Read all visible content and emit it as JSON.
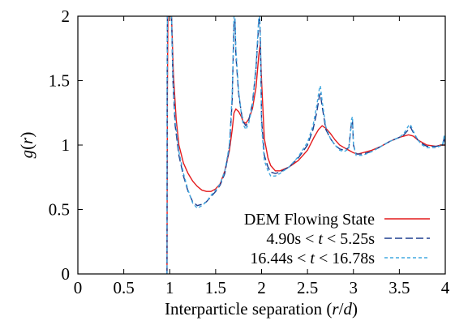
{
  "chart_data": {
    "type": "line",
    "xlabel": "Interparticle separation (r/d)",
    "ylabel": "g(r)",
    "xlim": [
      0,
      4
    ],
    "ylim": [
      0,
      2
    ],
    "xticks": [
      "0",
      "0.5",
      "1",
      "1.5",
      "2",
      "2.5",
      "3",
      "3.5",
      "4"
    ],
    "yticks": [
      "0",
      "0.5",
      "1",
      "1.5",
      "2"
    ],
    "grid": false,
    "legend_position": "bottom-right",
    "series": [
      {
        "name": "DEM Flowing State",
        "color": "#e41a1c",
        "dash": "solid",
        "points": [
          [
            0.97,
            0
          ],
          [
            0.975,
            1.4
          ],
          [
            0.98,
            2.0
          ],
          [
            1.0,
            2.0
          ],
          [
            1.02,
            2.0
          ],
          [
            1.04,
            1.55
          ],
          [
            1.07,
            1.2
          ],
          [
            1.1,
            1.0
          ],
          [
            1.15,
            0.86
          ],
          [
            1.2,
            0.78
          ],
          [
            1.25,
            0.72
          ],
          [
            1.3,
            0.68
          ],
          [
            1.35,
            0.65
          ],
          [
            1.4,
            0.64
          ],
          [
            1.45,
            0.64
          ],
          [
            1.5,
            0.66
          ],
          [
            1.55,
            0.7
          ],
          [
            1.6,
            0.8
          ],
          [
            1.65,
            0.96
          ],
          [
            1.68,
            1.12
          ],
          [
            1.7,
            1.25
          ],
          [
            1.72,
            1.28
          ],
          [
            1.75,
            1.26
          ],
          [
            1.78,
            1.22
          ],
          [
            1.8,
            1.18
          ],
          [
            1.83,
            1.17
          ],
          [
            1.86,
            1.2
          ],
          [
            1.9,
            1.28
          ],
          [
            1.94,
            1.45
          ],
          [
            1.97,
            1.7
          ],
          [
            1.985,
            1.78
          ],
          [
            2.0,
            1.5
          ],
          [
            2.03,
            1.05
          ],
          [
            2.07,
            0.9
          ],
          [
            2.1,
            0.84
          ],
          [
            2.15,
            0.8
          ],
          [
            2.2,
            0.8
          ],
          [
            2.3,
            0.83
          ],
          [
            2.4,
            0.88
          ],
          [
            2.5,
            0.96
          ],
          [
            2.57,
            1.06
          ],
          [
            2.62,
            1.12
          ],
          [
            2.66,
            1.15
          ],
          [
            2.7,
            1.13
          ],
          [
            2.75,
            1.09
          ],
          [
            2.8,
            1.04
          ],
          [
            2.85,
            1.0
          ],
          [
            2.9,
            0.98
          ],
          [
            2.95,
            0.96
          ],
          [
            3.0,
            0.94
          ],
          [
            3.05,
            0.93
          ],
          [
            3.1,
            0.94
          ],
          [
            3.2,
            0.96
          ],
          [
            3.3,
            0.99
          ],
          [
            3.4,
            1.03
          ],
          [
            3.5,
            1.06
          ],
          [
            3.55,
            1.07
          ],
          [
            3.6,
            1.08
          ],
          [
            3.65,
            1.07
          ],
          [
            3.7,
            1.04
          ],
          [
            3.75,
            1.02
          ],
          [
            3.8,
            1.0
          ],
          [
            3.9,
            0.99
          ],
          [
            3.95,
            1.0
          ],
          [
            4.0,
            1.0
          ]
        ]
      },
      {
        "name": "4.90s < t < 5.25s",
        "color": "#1f3f8f",
        "dash": "long",
        "points": [
          [
            0.97,
            0
          ],
          [
            0.972,
            1.5
          ],
          [
            0.975,
            2.0
          ],
          [
            1.0,
            2.0
          ],
          [
            1.02,
            2.0
          ],
          [
            1.035,
            1.5
          ],
          [
            1.06,
            1.15
          ],
          [
            1.1,
            0.92
          ],
          [
            1.15,
            0.76
          ],
          [
            1.2,
            0.64
          ],
          [
            1.25,
            0.56
          ],
          [
            1.3,
            0.53
          ],
          [
            1.35,
            0.54
          ],
          [
            1.4,
            0.56
          ],
          [
            1.45,
            0.6
          ],
          [
            1.5,
            0.64
          ],
          [
            1.55,
            0.69
          ],
          [
            1.6,
            0.78
          ],
          [
            1.65,
            0.98
          ],
          [
            1.68,
            1.35
          ],
          [
            1.7,
            1.95
          ],
          [
            1.71,
            1.98
          ],
          [
            1.72,
            1.7
          ],
          [
            1.75,
            1.4
          ],
          [
            1.78,
            1.25
          ],
          [
            1.8,
            1.18
          ],
          [
            1.83,
            1.15
          ],
          [
            1.86,
            1.19
          ],
          [
            1.9,
            1.32
          ],
          [
            1.94,
            1.6
          ],
          [
            1.97,
            1.95
          ],
          [
            1.98,
            2.0
          ],
          [
            1.99,
            1.7
          ],
          [
            2.0,
            1.2
          ],
          [
            2.03,
            0.92
          ],
          [
            2.07,
            0.83
          ],
          [
            2.1,
            0.79
          ],
          [
            2.15,
            0.78
          ],
          [
            2.2,
            0.79
          ],
          [
            2.3,
            0.83
          ],
          [
            2.4,
            0.9
          ],
          [
            2.5,
            1.0
          ],
          [
            2.56,
            1.12
          ],
          [
            2.6,
            1.25
          ],
          [
            2.63,
            1.38
          ],
          [
            2.64,
            1.4
          ],
          [
            2.66,
            1.3
          ],
          [
            2.7,
            1.12
          ],
          [
            2.75,
            1.05
          ],
          [
            2.8,
            1.0
          ],
          [
            2.85,
            0.97
          ],
          [
            2.9,
            0.96
          ],
          [
            2.95,
            0.98
          ],
          [
            2.98,
            1.18
          ],
          [
            2.99,
            1.19
          ],
          [
            3.0,
            1.0
          ],
          [
            3.03,
            0.93
          ],
          [
            3.1,
            0.93
          ],
          [
            3.2,
            0.95
          ],
          [
            3.3,
            0.99
          ],
          [
            3.4,
            1.03
          ],
          [
            3.5,
            1.06
          ],
          [
            3.55,
            1.08
          ],
          [
            3.6,
            1.12
          ],
          [
            3.62,
            1.14
          ],
          [
            3.65,
            1.1
          ],
          [
            3.7,
            1.04
          ],
          [
            3.75,
            1.01
          ],
          [
            3.8,
            0.99
          ],
          [
            3.9,
            0.99
          ],
          [
            3.97,
            1.0
          ],
          [
            3.99,
            1.06
          ],
          [
            4.0,
            1.0
          ]
        ]
      },
      {
        "name": "16.44s < t < 16.78s",
        "color": "#41a8e0",
        "dash": "short",
        "points": [
          [
            0.97,
            0
          ],
          [
            0.972,
            1.5
          ],
          [
            0.975,
            2.0
          ],
          [
            1.0,
            2.0
          ],
          [
            1.02,
            2.0
          ],
          [
            1.035,
            1.55
          ],
          [
            1.06,
            1.2
          ],
          [
            1.1,
            0.95
          ],
          [
            1.15,
            0.78
          ],
          [
            1.2,
            0.65
          ],
          [
            1.25,
            0.55
          ],
          [
            1.3,
            0.51
          ],
          [
            1.35,
            0.53
          ],
          [
            1.4,
            0.56
          ],
          [
            1.45,
            0.61
          ],
          [
            1.5,
            0.65
          ],
          [
            1.55,
            0.7
          ],
          [
            1.6,
            0.8
          ],
          [
            1.65,
            1.0
          ],
          [
            1.68,
            1.4
          ],
          [
            1.7,
            2.0
          ],
          [
            1.71,
            2.0
          ],
          [
            1.72,
            1.75
          ],
          [
            1.75,
            1.42
          ],
          [
            1.78,
            1.24
          ],
          [
            1.8,
            1.16
          ],
          [
            1.83,
            1.12
          ],
          [
            1.86,
            1.17
          ],
          [
            1.9,
            1.3
          ],
          [
            1.94,
            1.62
          ],
          [
            1.97,
            2.0
          ],
          [
            1.98,
            2.0
          ],
          [
            1.99,
            1.75
          ],
          [
            2.0,
            1.15
          ],
          [
            2.03,
            0.88
          ],
          [
            2.07,
            0.8
          ],
          [
            2.1,
            0.76
          ],
          [
            2.15,
            0.76
          ],
          [
            2.2,
            0.78
          ],
          [
            2.3,
            0.83
          ],
          [
            2.4,
            0.91
          ],
          [
            2.5,
            1.02
          ],
          [
            2.56,
            1.15
          ],
          [
            2.6,
            1.3
          ],
          [
            2.63,
            1.44
          ],
          [
            2.64,
            1.46
          ],
          [
            2.66,
            1.34
          ],
          [
            2.7,
            1.14
          ],
          [
            2.75,
            1.05
          ],
          [
            2.8,
            1.0
          ],
          [
            2.85,
            0.96
          ],
          [
            2.9,
            0.95
          ],
          [
            2.95,
            0.97
          ],
          [
            2.98,
            1.2
          ],
          [
            2.99,
            1.22
          ],
          [
            3.0,
            1.0
          ],
          [
            3.03,
            0.92
          ],
          [
            3.1,
            0.92
          ],
          [
            3.2,
            0.95
          ],
          [
            3.3,
            0.99
          ],
          [
            3.4,
            1.03
          ],
          [
            3.5,
            1.06
          ],
          [
            3.55,
            1.09
          ],
          [
            3.6,
            1.15
          ],
          [
            3.62,
            1.16
          ],
          [
            3.65,
            1.11
          ],
          [
            3.7,
            1.04
          ],
          [
            3.75,
            1.0
          ],
          [
            3.8,
            0.98
          ],
          [
            3.9,
            0.98
          ],
          [
            3.97,
            1.0
          ],
          [
            3.99,
            1.08
          ],
          [
            4.0,
            1.0
          ]
        ]
      }
    ]
  },
  "legend": {
    "entries": [
      {
        "parts": [
          {
            "text": "DEM Flowing State",
            "italic": false
          }
        ]
      },
      {
        "parts": [
          {
            "text": "4.90s < ",
            "italic": false
          },
          {
            "text": "t",
            "italic": true
          },
          {
            "text": " < 5.25s",
            "italic": false
          }
        ]
      },
      {
        "parts": [
          {
            "text": "16.44s < ",
            "italic": false
          },
          {
            "text": "t",
            "italic": true
          },
          {
            "text": " < 16.78s",
            "italic": false
          }
        ]
      }
    ]
  }
}
